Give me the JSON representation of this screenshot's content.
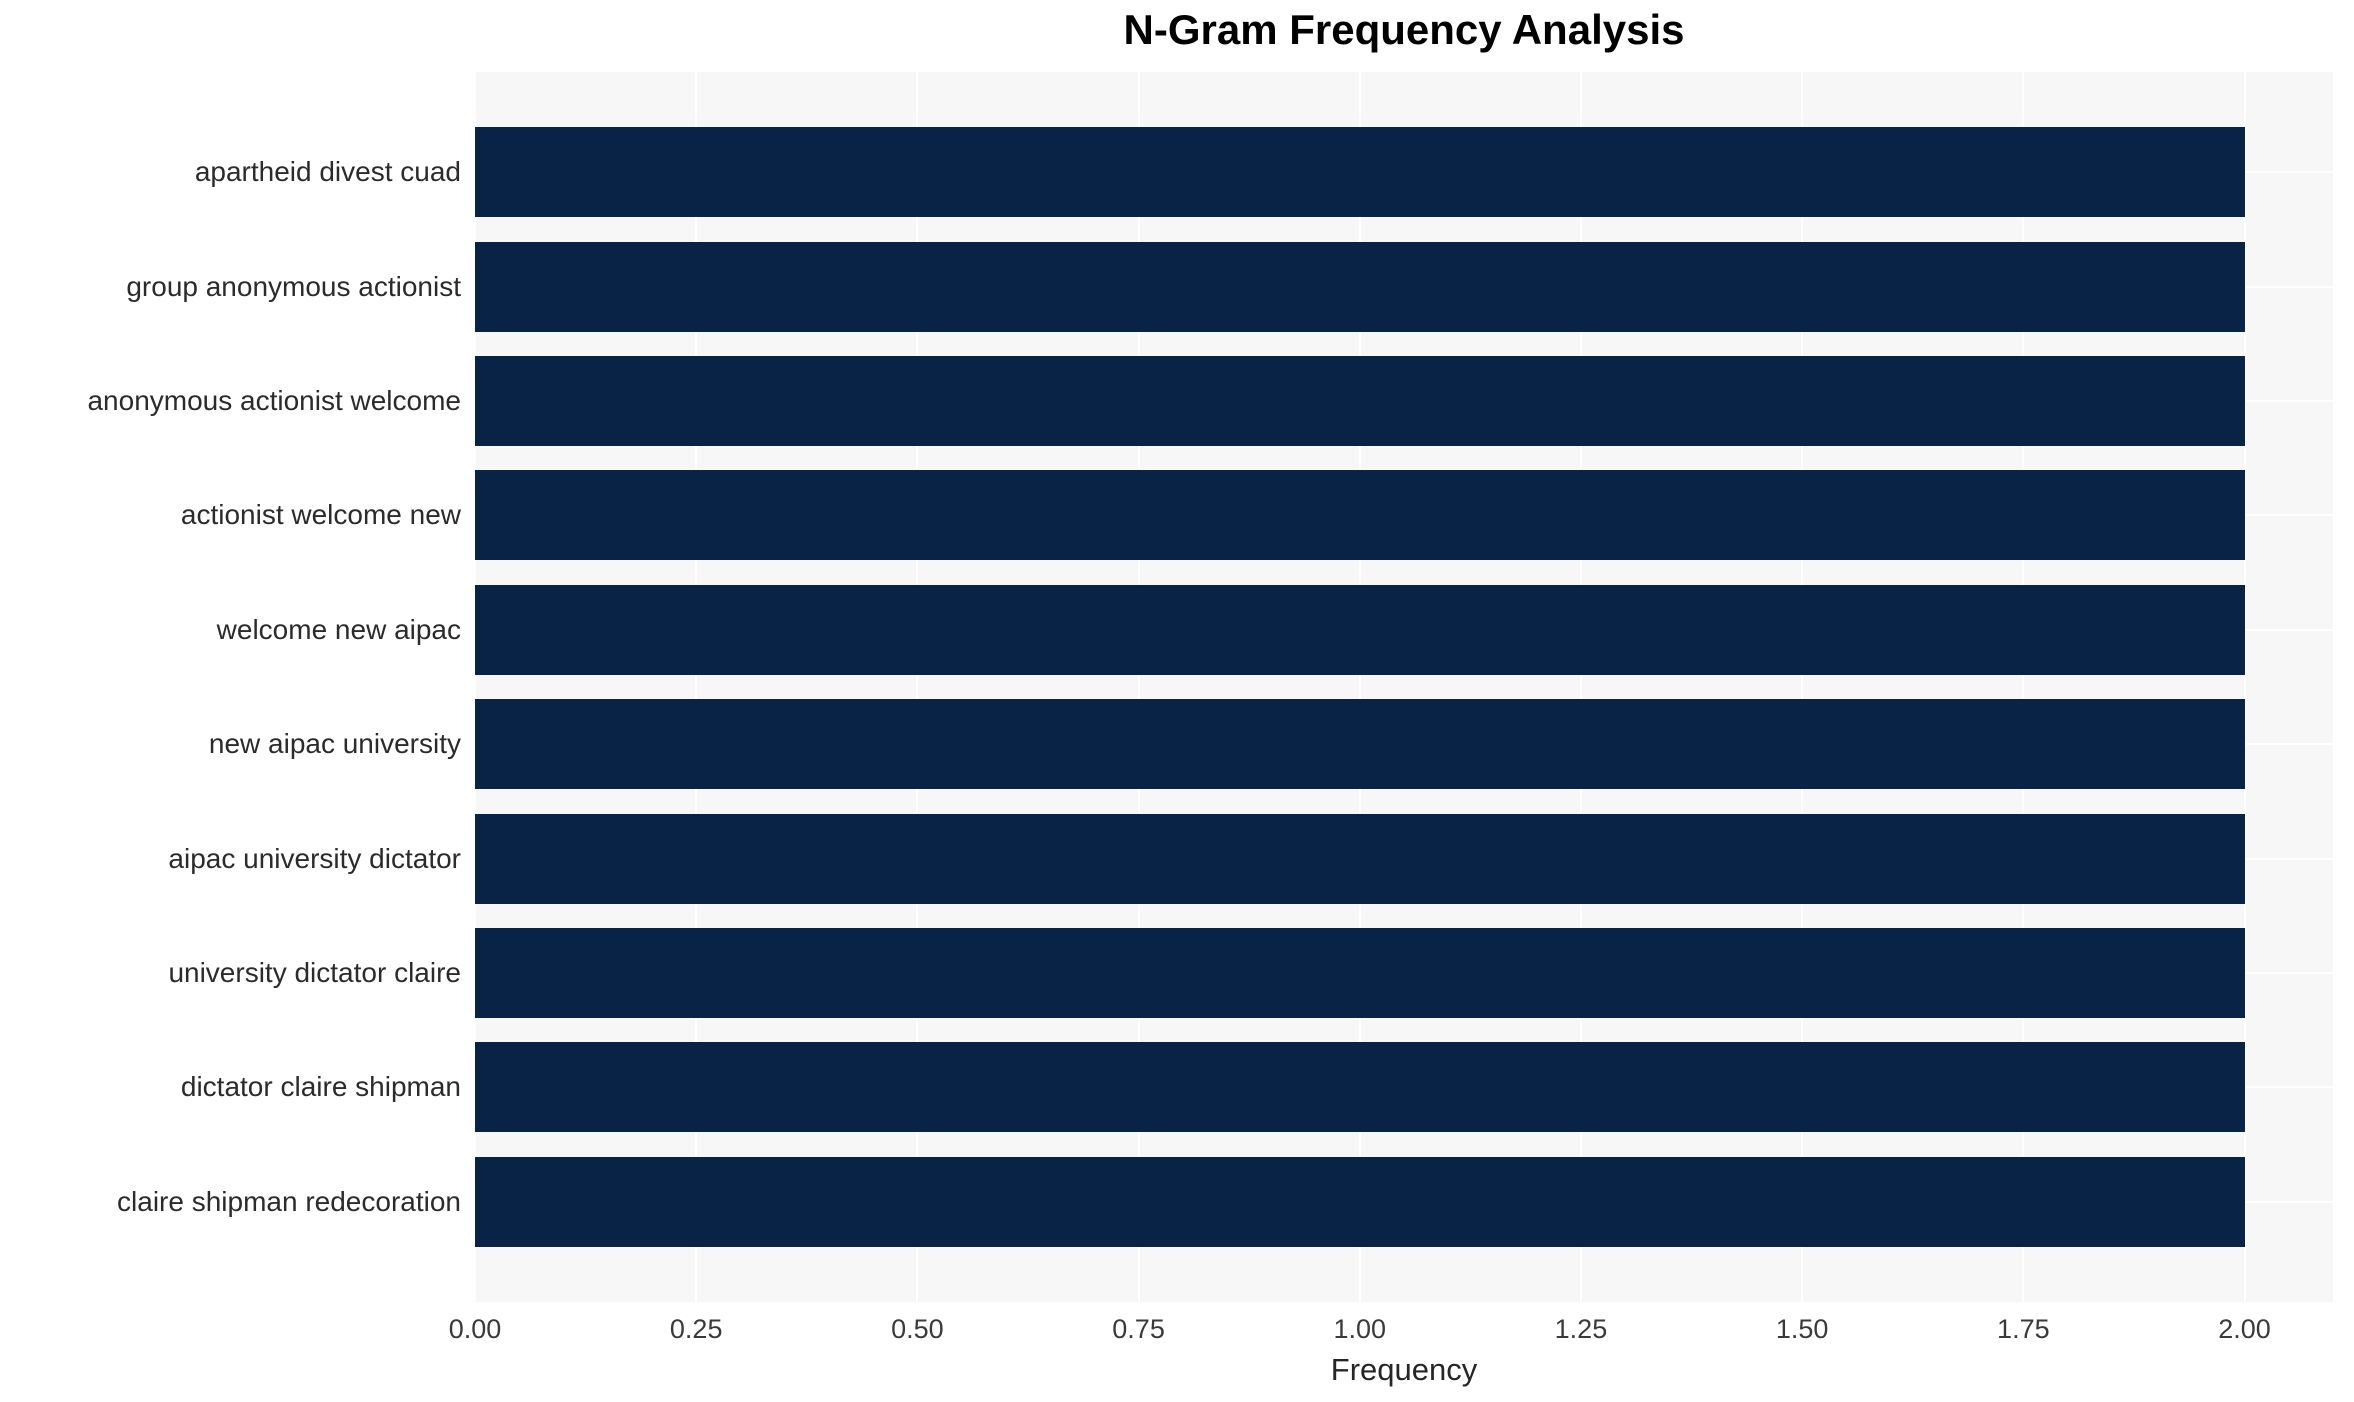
{
  "title": "N-Gram Frequency Analysis",
  "chart_data": {
    "type": "bar",
    "orientation": "horizontal",
    "title": "N-Gram Frequency Analysis",
    "xlabel": "Frequency",
    "ylabel": "",
    "categories": [
      "apartheid divest cuad",
      "group anonymous actionist",
      "anonymous actionist welcome",
      "actionist welcome new",
      "welcome new aipac",
      "new aipac university",
      "aipac university dictator",
      "university dictator claire",
      "dictator claire shipman",
      "claire shipman redecoration"
    ],
    "values": [
      2,
      2,
      2,
      2,
      2,
      2,
      2,
      2,
      2,
      2
    ],
    "xlim": [
      0,
      2.1
    ],
    "xticks": {
      "values": [
        0,
        0.25,
        0.5,
        0.75,
        1.0,
        1.25,
        1.5,
        1.75,
        2.0
      ],
      "labels": [
        "0.00",
        "0.25",
        "0.50",
        "0.75",
        "1.00",
        "1.25",
        "1.50",
        "1.75",
        "2.00"
      ]
    },
    "grid": true,
    "legend": null,
    "colors": {
      "bar": "#082345",
      "plot_bg": "#f7f7f7",
      "grid": "#ffffff",
      "title": "#000000",
      "axis_label": "#262626",
      "tick_label": "#3a3a3a",
      "category_label": "#2b2b2b",
      "page_bg": "#ffffff"
    }
  }
}
